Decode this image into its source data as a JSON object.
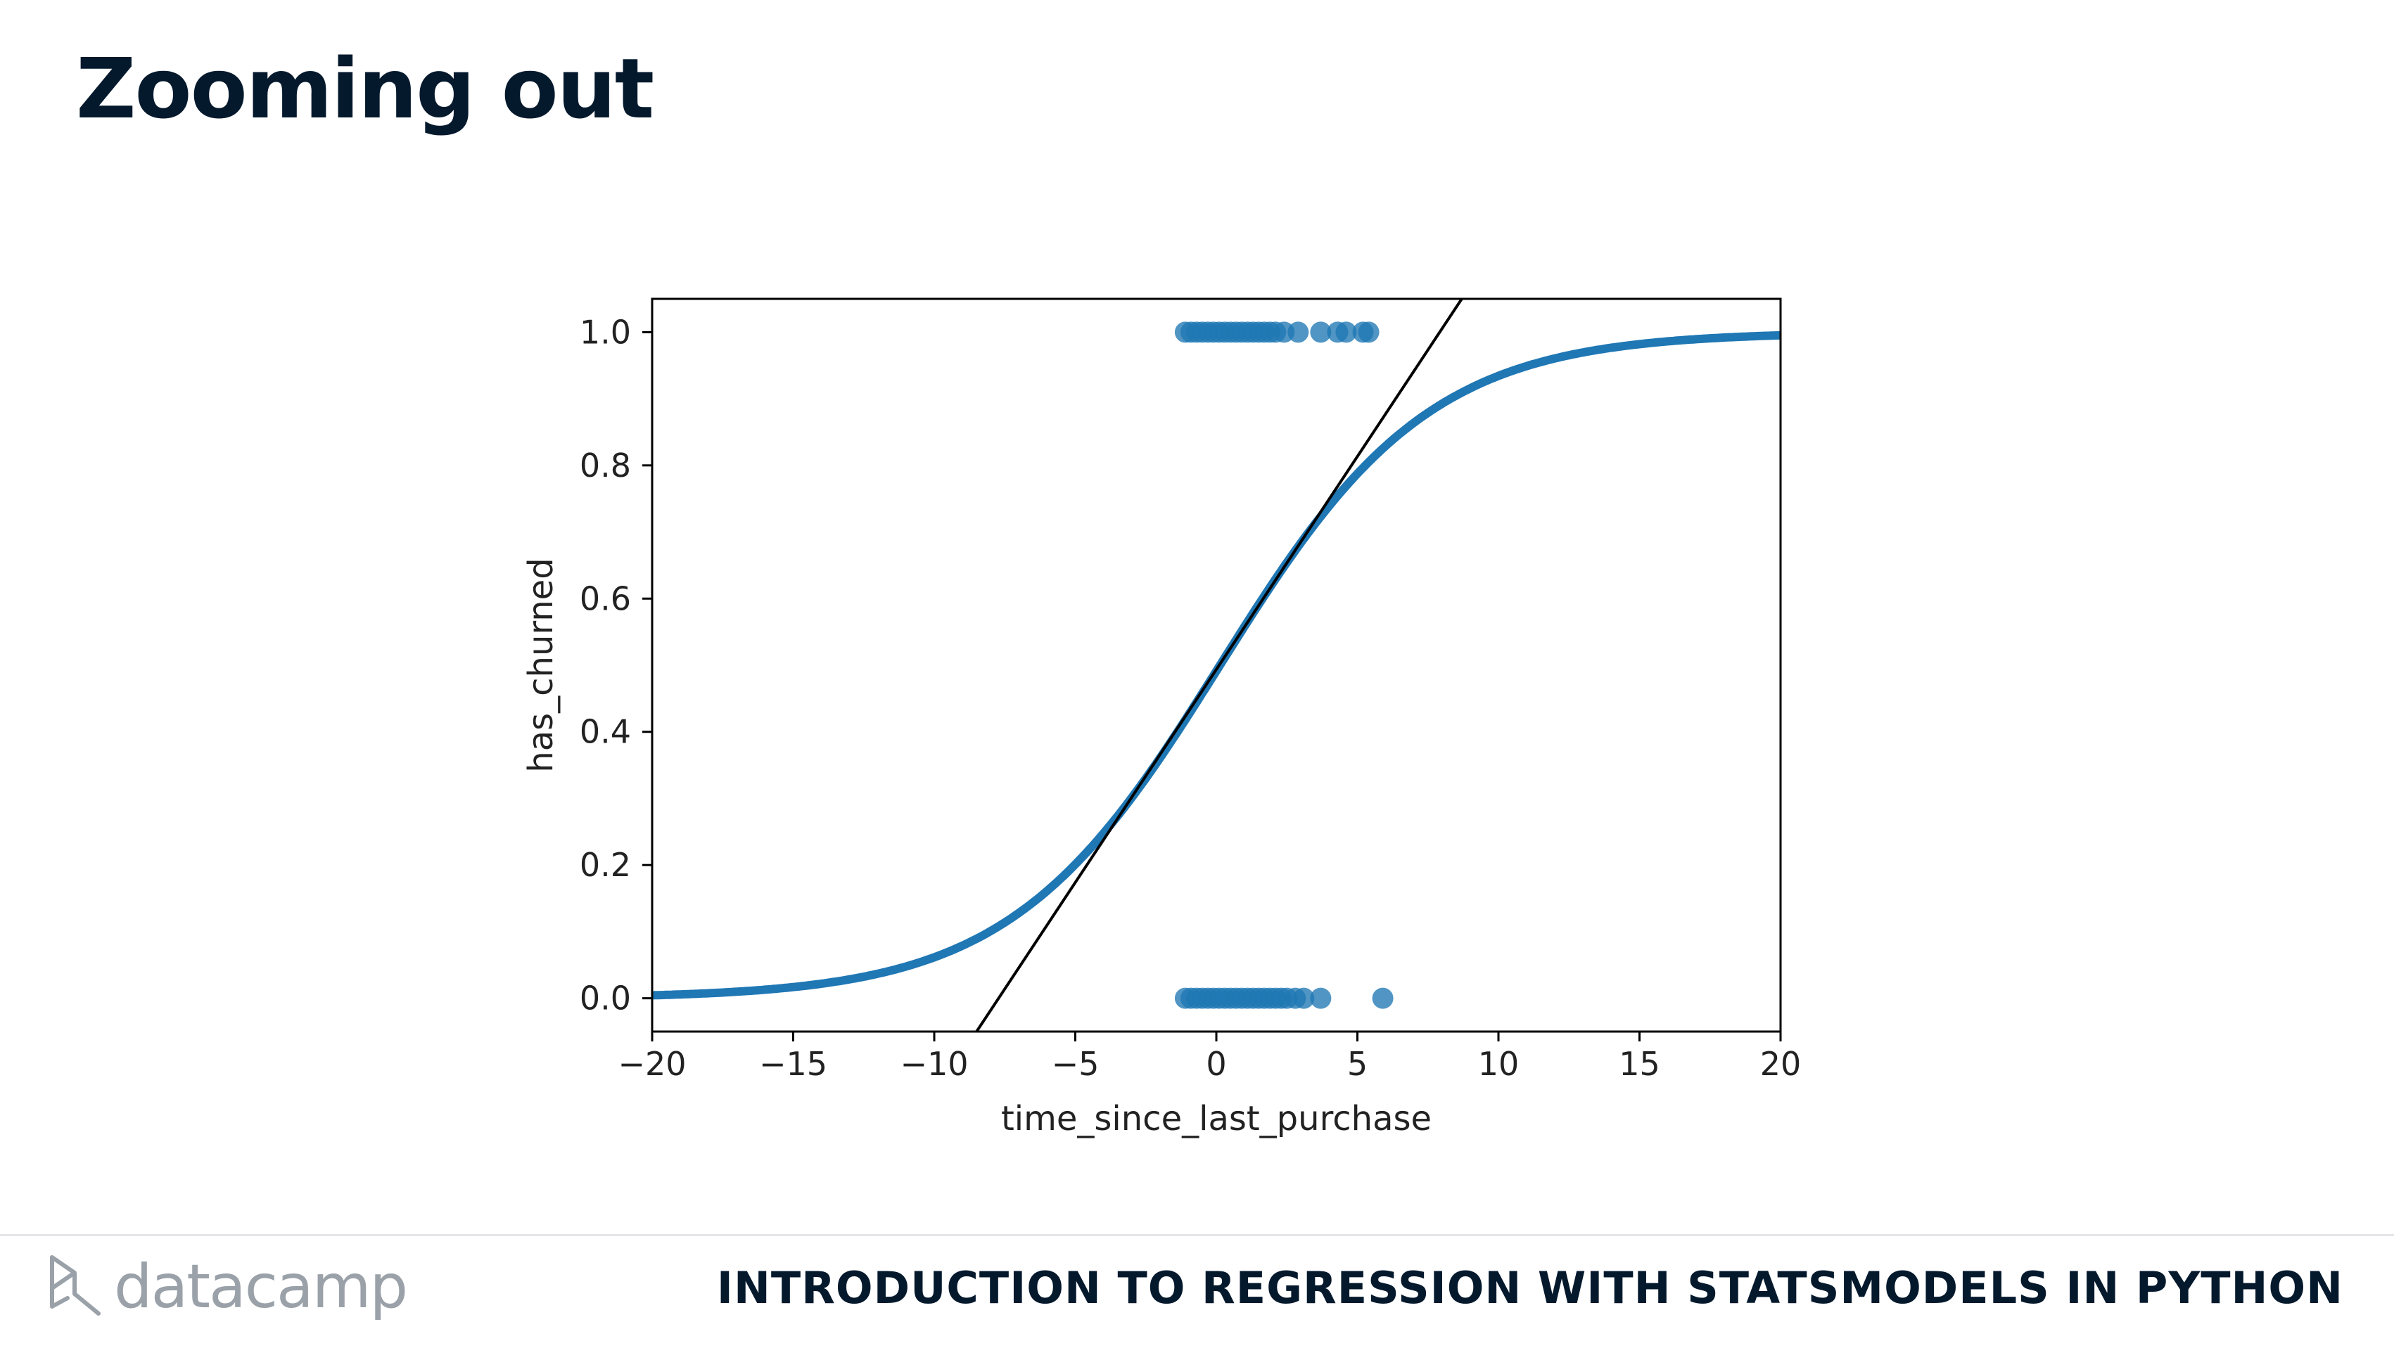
{
  "slide": {
    "title": "Zooming out",
    "course_title": "INTRODUCTION TO REGRESSION WITH STATSMODELS IN PYTHON",
    "brand": "datacamp"
  },
  "colors": {
    "title": "#05192d",
    "curve": "#1f77b4",
    "points": "#1f77b4",
    "tangent": "#000000",
    "brand_gray": "#9aa1a8"
  },
  "chart_data": {
    "type": "scatter",
    "title": "",
    "xlabel": "time_since_last_purchase",
    "ylabel": "has_churned",
    "xlim": [
      -20,
      20
    ],
    "ylim": [
      -0.05,
      1.05
    ],
    "xticks": [
      -20,
      -15,
      -10,
      -5,
      0,
      5,
      10,
      15,
      20
    ],
    "xtick_labels": [
      "−20",
      "−15",
      "−10",
      "−5",
      "0",
      "5",
      "10",
      "15",
      "20"
    ],
    "yticks": [
      0.0,
      0.2,
      0.4,
      0.6,
      0.8,
      1.0
    ],
    "ytick_labels": [
      "0.0",
      "0.2",
      "0.4",
      "0.6",
      "0.8",
      "1.0"
    ],
    "grid": false,
    "series": [
      {
        "kind": "scatter",
        "x": [
          -1.1,
          -0.9,
          -0.7,
          -0.5,
          -0.3,
          -0.1,
          0.1,
          0.3,
          0.5,
          0.7,
          0.9,
          1.1,
          1.3,
          1.5,
          1.7,
          1.9,
          2.1,
          2.4,
          2.9,
          3.7,
          4.3,
          4.6,
          5.2,
          5.4
        ],
        "y": [
          1,
          1,
          1,
          1,
          1,
          1,
          1,
          1,
          1,
          1,
          1,
          1,
          1,
          1,
          1,
          1,
          1,
          1,
          1,
          1,
          1,
          1,
          1,
          1
        ]
      },
      {
        "kind": "scatter",
        "x": [
          -1.1,
          -0.9,
          -0.7,
          -0.5,
          -0.3,
          -0.1,
          0.1,
          0.3,
          0.5,
          0.7,
          0.9,
          1.1,
          1.3,
          1.5,
          1.7,
          1.9,
          2.1,
          2.3,
          2.5,
          2.8,
          3.1,
          3.7,
          5.9
        ],
        "y": [
          0,
          0,
          0,
          0,
          0,
          0,
          0,
          0,
          0,
          0,
          0,
          0,
          0,
          0,
          0,
          0,
          0,
          0,
          0,
          0,
          0,
          0,
          0
        ]
      },
      {
        "kind": "logistic_curve",
        "intercept": -0.035,
        "slope": 0.269
      },
      {
        "kind": "line",
        "x": [
          -8.5,
          8.7
        ],
        "y": [
          -0.05,
          1.05
        ]
      }
    ]
  }
}
